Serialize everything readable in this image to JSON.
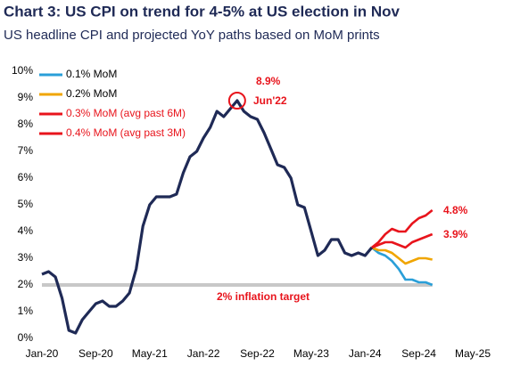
{
  "chart_data": {
    "type": "line",
    "title": "Chart 3: US CPI on trend for 4-5% at US election in Nov",
    "subtitle": "US headline CPI and projected YoY paths based on MoM prints",
    "categories": [
      "Jan-20",
      null,
      null,
      null,
      null,
      null,
      null,
      null,
      "Sep-20",
      null,
      null,
      null,
      null,
      null,
      null,
      null,
      "May-21",
      null,
      null,
      null,
      null,
      null,
      null,
      null,
      "Jan-22",
      null,
      null,
      null,
      null,
      null,
      null,
      null,
      "Sep-22",
      null,
      null,
      null,
      null,
      null,
      null,
      null,
      "May-23",
      null,
      null,
      null,
      null,
      null,
      null,
      null,
      "Jan-24",
      null,
      null,
      null,
      null,
      null,
      null,
      null,
      "Sep-24",
      null,
      null,
      null,
      null,
      null,
      null,
      null,
      "May-25"
    ],
    "ylim": [
      0,
      10
    ],
    "yticks": [
      {
        "value": 0,
        "label": "0%"
      },
      {
        "value": 1,
        "label": "1%"
      },
      {
        "value": 2,
        "label": "2%"
      },
      {
        "value": 3,
        "label": "3%"
      },
      {
        "value": 4,
        "label": "4%"
      },
      {
        "value": 5,
        "label": "5%"
      },
      {
        "value": 6,
        "label": "6%"
      },
      {
        "value": 7,
        "label": "7%"
      },
      {
        "value": 8,
        "label": "8%"
      },
      {
        "value": 9,
        "label": "9%"
      },
      {
        "value": 10,
        "label": "10%"
      }
    ],
    "grid": false,
    "series": [
      {
        "color": "#1f2a56",
        "values": [
          2.4,
          2.5,
          2.3,
          1.5,
          0.3,
          0.2,
          0.7,
          1.0,
          1.3,
          1.4,
          1.2,
          1.2,
          1.4,
          1.7,
          2.6,
          4.2,
          5.0,
          5.3,
          5.3,
          5.3,
          5.4,
          6.2,
          6.8,
          7.0,
          7.5,
          7.9,
          8.5,
          8.3,
          8.6,
          8.9,
          8.5,
          8.3,
          8.2,
          7.7,
          7.1,
          6.5,
          6.4,
          6.0,
          5.0,
          4.9,
          4.0,
          3.1,
          3.3,
          3.7,
          3.7,
          3.2,
          3.1,
          3.2,
          3.1,
          3.4,
          null,
          null,
          null,
          null,
          null,
          null,
          null,
          null,
          null,
          null,
          null,
          null,
          null,
          null,
          null
        ]
      },
      {
        "name": "0.1% MoM",
        "color": "#2a9fd8",
        "label_color": "#000000",
        "values": [
          null,
          null,
          null,
          null,
          null,
          null,
          null,
          null,
          null,
          null,
          null,
          null,
          null,
          null,
          null,
          null,
          null,
          null,
          null,
          null,
          null,
          null,
          null,
          null,
          null,
          null,
          null,
          null,
          null,
          null,
          null,
          null,
          null,
          null,
          null,
          null,
          null,
          null,
          null,
          null,
          null,
          null,
          null,
          null,
          null,
          null,
          null,
          null,
          null,
          3.4,
          3.2,
          3.1,
          2.9,
          2.6,
          2.2,
          2.2,
          2.1,
          2.1,
          2.0,
          null,
          null,
          null,
          null,
          null,
          null
        ]
      },
      {
        "name": "0.2% MoM",
        "color": "#f0a500",
        "label_color": "#000000",
        "values": [
          null,
          null,
          null,
          null,
          null,
          null,
          null,
          null,
          null,
          null,
          null,
          null,
          null,
          null,
          null,
          null,
          null,
          null,
          null,
          null,
          null,
          null,
          null,
          null,
          null,
          null,
          null,
          null,
          null,
          null,
          null,
          null,
          null,
          null,
          null,
          null,
          null,
          null,
          null,
          null,
          null,
          null,
          null,
          null,
          null,
          null,
          null,
          null,
          null,
          3.4,
          3.3,
          3.3,
          3.2,
          3.0,
          2.8,
          2.9,
          3.0,
          3.0,
          2.95,
          null,
          null,
          null,
          null,
          null,
          null
        ]
      },
      {
        "name": "0.3% MoM (avg past 6M)",
        "color": "#e8141c",
        "label_color": "#e8141c",
        "values": [
          null,
          null,
          null,
          null,
          null,
          null,
          null,
          null,
          null,
          null,
          null,
          null,
          null,
          null,
          null,
          null,
          null,
          null,
          null,
          null,
          null,
          null,
          null,
          null,
          null,
          null,
          null,
          null,
          null,
          null,
          null,
          null,
          null,
          null,
          null,
          null,
          null,
          null,
          null,
          null,
          null,
          null,
          null,
          null,
          null,
          null,
          null,
          null,
          null,
          3.4,
          3.5,
          3.6,
          3.6,
          3.5,
          3.4,
          3.6,
          3.7,
          3.8,
          3.9,
          null,
          null,
          null,
          null,
          null,
          null
        ]
      },
      {
        "name": "0.4% MoM (avg past 3M)",
        "color": "#e8141c",
        "label_color": "#e8141c",
        "values": [
          null,
          null,
          null,
          null,
          null,
          null,
          null,
          null,
          null,
          null,
          null,
          null,
          null,
          null,
          null,
          null,
          null,
          null,
          null,
          null,
          null,
          null,
          null,
          null,
          null,
          null,
          null,
          null,
          null,
          null,
          null,
          null,
          null,
          null,
          null,
          null,
          null,
          null,
          null,
          null,
          null,
          null,
          null,
          null,
          null,
          null,
          null,
          null,
          null,
          3.4,
          3.6,
          3.9,
          4.1,
          4.0,
          4.0,
          4.3,
          4.5,
          4.6,
          4.8,
          null,
          null,
          null,
          null,
          null,
          null
        ]
      }
    ],
    "target": {
      "value": 2,
      "label": "2% inflation target",
      "color": "#c8c8c8"
    },
    "annotations": [
      "8.9%",
      "Jun'22",
      "4.8%",
      "3.9%"
    ]
  }
}
